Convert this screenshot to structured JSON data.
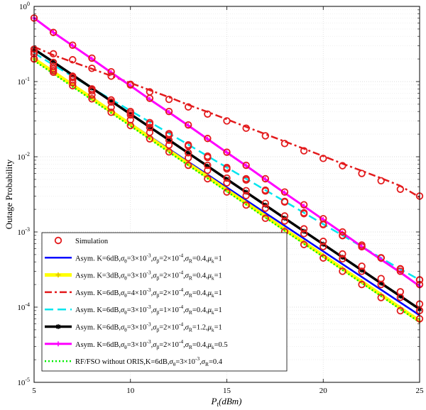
{
  "chart_data": {
    "type": "line",
    "y_scale": "log",
    "xlabel": "P_t(dBm)",
    "ylabel": "Outage Probability",
    "xlim": [
      5,
      25
    ],
    "ylim": [
      1e-05,
      1
    ],
    "grid": true,
    "legend_placement": "bottom-left",
    "x_ticks": [
      "5",
      "10",
      "15",
      "20",
      "25"
    ],
    "y_ticks": [
      {
        "value": 1,
        "base": "10",
        "exp": "0"
      },
      {
        "value": 0.1,
        "base": "10",
        "exp": "-1"
      },
      {
        "value": 0.01,
        "base": "10",
        "exp": "-2"
      },
      {
        "value": 0.001,
        "base": "10",
        "exp": "-3"
      },
      {
        "value": 0.0001,
        "base": "10",
        "exp": "-4"
      },
      {
        "value": 1e-05,
        "base": "10",
        "exp": "-5"
      }
    ],
    "simulation": {
      "name": "Simulation",
      "color": "#e31a1c",
      "x": [
        5,
        6,
        7,
        8,
        9,
        10,
        11,
        12,
        13,
        14,
        15,
        16,
        17,
        18,
        19,
        20,
        21,
        22,
        23,
        24,
        25
      ],
      "sets": [
        [
          0.2,
          0.148,
          0.106,
          0.0752,
          0.0537,
          0.0381,
          0.0272,
          0.0194,
          0.0139,
          0.0098,
          0.0069,
          0.0049,
          0.0035,
          0.0025,
          0.00175,
          0.00125,
          0.00089,
          0.000636,
          0.000454,
          0.000324,
          0.000231
        ],
        [
          0.2,
          0.14,
          0.097,
          0.0665,
          0.0455,
          0.031,
          0.0211,
          0.0143,
          0.0097,
          0.0066,
          0.0045,
          0.00305,
          0.00207,
          0.0014,
          0.00095,
          0.00064,
          0.00044,
          0.0003,
          0.0002,
          0.000135,
          9e-05
        ],
        [
          0.232,
          0.234,
          0.195,
          0.15,
          0.118,
          0.092,
          0.073,
          0.058,
          0.046,
          0.037,
          0.03,
          0.024,
          0.019,
          0.015,
          0.012,
          0.0095,
          0.0076,
          0.006,
          0.0048,
          0.0037,
          0.003
        ],
        [
          0.25,
          0.16,
          0.113,
          0.08,
          0.057,
          0.04,
          0.0285,
          0.0203,
          0.0144,
          0.0102,
          0.0072,
          0.0051,
          0.0036,
          0.00255,
          0.0018,
          0.00127,
          0.0009,
          0.00064,
          0.00045,
          0.00032,
          0.00023
        ],
        [
          0.27,
          0.18,
          0.118,
          0.079,
          0.0535,
          0.036,
          0.0245,
          0.0166,
          0.0113,
          0.0077,
          0.0052,
          0.00354,
          0.0024,
          0.00163,
          0.0011,
          0.00075,
          0.00051,
          0.00035,
          0.00024,
          0.00016,
          0.00011
        ],
        [
          0.7,
          0.45,
          0.305,
          0.205,
          0.135,
          0.09,
          0.06,
          0.04,
          0.0265,
          0.0175,
          0.0115,
          0.0077,
          0.0051,
          0.0034,
          0.0023,
          0.0015,
          0.001,
          0.00067,
          0.00045,
          0.0003,
          0.0002
        ],
        [
          0.2,
          0.133,
          0.088,
          0.059,
          0.039,
          0.026,
          0.0173,
          0.0116,
          0.0077,
          0.0051,
          0.0034,
          0.00228,
          0.00152,
          0.00101,
          0.00068,
          0.00045,
          0.0003,
          0.0002,
          0.000134,
          8.95e-05,
          7e-05
        ]
      ]
    },
    "series": [
      {
        "name": "Asym. K=6dB,σ_θ=3×10^-3,σ_β=2×10^-4,σ_R=0.4,μ_k=1",
        "color": "#0000ff",
        "dash": "solid",
        "width": 2.5,
        "marker": "none",
        "x": [
          5,
          25
        ],
        "y": [
          0.196,
          7.8e-05
        ]
      },
      {
        "name": "Asym. K=3dB,σ_θ=3×10^-3,σ_β=2×10^-4,σ_R=0.4,μ_k=1",
        "color": "#ffff00",
        "dash": "solid",
        "width": 5,
        "marker": "plus",
        "x": [
          5,
          6,
          7,
          8,
          9,
          10,
          11,
          12,
          13,
          14,
          15,
          16,
          17,
          18,
          19,
          20,
          21,
          22,
          23,
          24,
          25
        ],
        "y": [
          0.2,
          0.134,
          0.0895,
          0.06,
          0.0401,
          0.0269,
          0.018,
          0.012,
          0.00806,
          0.0054,
          0.0036,
          0.00242,
          0.00162,
          0.00108,
          0.000725,
          0.000485,
          0.000325,
          0.000218,
          0.000146,
          9.74e-05,
          6.52e-05
        ]
      },
      {
        "name": "Asym. K=6dB,σ_θ=4×10^-3,σ_β=2×10^-4,σ_R=0.4,μ_k=1",
        "color": "#e31a1c",
        "dash": "dashdot",
        "width": 2.5,
        "marker": "none",
        "x": [
          5,
          6,
          7,
          8,
          9,
          10,
          11,
          12,
          13,
          14,
          15,
          16,
          17,
          18,
          19,
          20,
          21,
          22,
          23,
          24,
          25
        ],
        "y": [
          0.29,
          0.225,
          0.182,
          0.148,
          0.119,
          0.096,
          0.077,
          0.062,
          0.049,
          0.0395,
          0.0315,
          0.025,
          0.02,
          0.016,
          0.0128,
          0.0102,
          0.0081,
          0.0065,
          0.0052,
          0.0041,
          0.0029
        ]
      },
      {
        "name": "Asym. K=6dB,σ_θ=3×10^-3,σ_β=1×10^-4,σ_R=0.4,μ_k=1",
        "color": "#00e5ee",
        "dash": "dash",
        "width": 2.5,
        "marker": "none",
        "x": [
          5,
          6,
          7,
          8,
          9,
          10,
          11,
          12,
          13,
          14,
          15,
          16,
          17,
          18,
          19,
          20,
          21,
          22,
          23,
          24,
          25
        ],
        "y": [
          0.24,
          0.166,
          0.117,
          0.082,
          0.058,
          0.041,
          0.029,
          0.0205,
          0.0145,
          0.0102,
          0.0072,
          0.0051,
          0.0036,
          0.00255,
          0.0018,
          0.00127,
          0.0009,
          0.00064,
          0.00045,
          0.00032,
          0.00023
        ]
      },
      {
        "name": "Asym. K=6dB,σ_θ=3×10^-3,σ_β=2×10^-4,σ_R=1.2,μ_k=1",
        "color": "#000000",
        "dash": "solid",
        "width": 3.5,
        "marker": "star",
        "x": [
          5,
          6,
          7,
          8,
          9,
          10,
          11,
          12,
          13,
          14,
          15,
          16,
          17,
          18,
          19,
          20,
          21,
          22,
          23,
          24,
          25
        ],
        "y": [
          0.27,
          0.182,
          0.122,
          0.082,
          0.055,
          0.037,
          0.0248,
          0.0167,
          0.0112,
          0.0075,
          0.00503,
          0.00338,
          0.00227,
          0.00152,
          0.00102,
          0.000687,
          0.000461,
          0.00031,
          0.000208,
          0.00014,
          9.4e-05
        ]
      },
      {
        "name": "Asym. K=6dB,σ_θ=3×10^-3,σ_β=2×10^-4,σ_R=0.4,μ_k=0.5",
        "color": "#ff00ff",
        "dash": "solid",
        "width": 3,
        "marker": "plus",
        "x": [
          5,
          6,
          7,
          8,
          9,
          10,
          11,
          12,
          13,
          14,
          15,
          16,
          17,
          18,
          19,
          20,
          21,
          22,
          23,
          24,
          25
        ],
        "y": [
          0.7,
          0.45,
          0.3,
          0.2,
          0.132,
          0.088,
          0.058,
          0.039,
          0.026,
          0.0172,
          0.0114,
          0.0076,
          0.005,
          0.0033,
          0.0022,
          0.00146,
          0.00097,
          0.00064,
          0.00043,
          0.00029,
          0.00019
        ]
      },
      {
        "name": "RF/FSO without ORIS,K=6dB,σ_θ=3×10^-3,σ_R=0.4",
        "color": "#00ee00",
        "dash": "dot",
        "width": 2.5,
        "marker": "none",
        "x": [
          5,
          25
        ],
        "y": [
          0.19,
          6.3e-05
        ]
      }
    ],
    "legend_entries": [
      {
        "kind": "marker",
        "color": "#e31a1c",
        "parts": [
          {
            "t": "Simulation",
            "s": "n"
          }
        ]
      },
      {
        "kind": "line",
        "series": 0,
        "parts": [
          {
            "t": "Asym. K=6dB,",
            "s": "n"
          },
          {
            "t": "σ",
            "s": "i"
          },
          {
            "t": "θ",
            "s": "sub"
          },
          {
            "t": "=3×10",
            "s": "n"
          },
          {
            "t": "-3",
            "s": "sup"
          },
          {
            "t": ",",
            "s": "n"
          },
          {
            "t": "σ",
            "s": "i"
          },
          {
            "t": "β",
            "s": "sub"
          },
          {
            "t": "=2×10",
            "s": "n"
          },
          {
            "t": "-4",
            "s": "sup"
          },
          {
            "t": ",",
            "s": "n"
          },
          {
            "t": "σ",
            "s": "i"
          },
          {
            "t": "R",
            "s": "sub"
          },
          {
            "t": "=0.4,",
            "s": "n"
          },
          {
            "t": "μ",
            "s": "i"
          },
          {
            "t": "k",
            "s": "sub"
          },
          {
            "t": "=1",
            "s": "n"
          }
        ]
      },
      {
        "kind": "line",
        "series": 1,
        "parts": [
          {
            "t": "Asym. K=3dB,",
            "s": "n"
          },
          {
            "t": "σ",
            "s": "i"
          },
          {
            "t": "θ",
            "s": "sub"
          },
          {
            "t": "=3×10",
            "s": "n"
          },
          {
            "t": "-3",
            "s": "sup"
          },
          {
            "t": ",",
            "s": "n"
          },
          {
            "t": "σ",
            "s": "i"
          },
          {
            "t": "β",
            "s": "sub"
          },
          {
            "t": "=2×10",
            "s": "n"
          },
          {
            "t": "-4",
            "s": "sup"
          },
          {
            "t": ",",
            "s": "n"
          },
          {
            "t": "σ",
            "s": "i"
          },
          {
            "t": "R",
            "s": "sub"
          },
          {
            "t": "=0.4,",
            "s": "n"
          },
          {
            "t": "μ",
            "s": "i"
          },
          {
            "t": "k",
            "s": "sub"
          },
          {
            "t": "=1",
            "s": "n"
          }
        ]
      },
      {
        "kind": "line",
        "series": 2,
        "parts": [
          {
            "t": "Asym. K=6dB,",
            "s": "n"
          },
          {
            "t": "σ",
            "s": "i"
          },
          {
            "t": "θ",
            "s": "sub"
          },
          {
            "t": "=4×10",
            "s": "n"
          },
          {
            "t": "-3",
            "s": "sup"
          },
          {
            "t": ",",
            "s": "n"
          },
          {
            "t": "σ",
            "s": "i"
          },
          {
            "t": "β",
            "s": "sub"
          },
          {
            "t": "=2×10",
            "s": "n"
          },
          {
            "t": "-4",
            "s": "sup"
          },
          {
            "t": ",",
            "s": "n"
          },
          {
            "t": "σ",
            "s": "i"
          },
          {
            "t": "R",
            "s": "sub"
          },
          {
            "t": "=0.4,",
            "s": "n"
          },
          {
            "t": "μ",
            "s": "i"
          },
          {
            "t": "k",
            "s": "sub"
          },
          {
            "t": "=1",
            "s": "n"
          }
        ]
      },
      {
        "kind": "line",
        "series": 3,
        "parts": [
          {
            "t": "Asym. K=6dB,",
            "s": "n"
          },
          {
            "t": "σ",
            "s": "i"
          },
          {
            "t": "θ",
            "s": "sub"
          },
          {
            "t": "=3×10",
            "s": "n"
          },
          {
            "t": "-3",
            "s": "sup"
          },
          {
            "t": ",",
            "s": "n"
          },
          {
            "t": "σ",
            "s": "i"
          },
          {
            "t": "β",
            "s": "sub"
          },
          {
            "t": "=1×10",
            "s": "n"
          },
          {
            "t": "-4",
            "s": "sup"
          },
          {
            "t": ",",
            "s": "n"
          },
          {
            "t": "σ",
            "s": "i"
          },
          {
            "t": "R",
            "s": "sub"
          },
          {
            "t": "=0.4,",
            "s": "n"
          },
          {
            "t": "μ",
            "s": "i"
          },
          {
            "t": "k",
            "s": "sub"
          },
          {
            "t": "=1",
            "s": "n"
          }
        ]
      },
      {
        "kind": "line",
        "series": 4,
        "parts": [
          {
            "t": "Asym. K=6dB,",
            "s": "n"
          },
          {
            "t": "σ",
            "s": "i"
          },
          {
            "t": "θ",
            "s": "sub"
          },
          {
            "t": "=3×10",
            "s": "n"
          },
          {
            "t": "-3",
            "s": "sup"
          },
          {
            "t": ",",
            "s": "n"
          },
          {
            "t": "σ",
            "s": "i"
          },
          {
            "t": "β",
            "s": "sub"
          },
          {
            "t": "=2×10",
            "s": "n"
          },
          {
            "t": "-4",
            "s": "sup"
          },
          {
            "t": ",",
            "s": "n"
          },
          {
            "t": "σ",
            "s": "i"
          },
          {
            "t": "R",
            "s": "sub"
          },
          {
            "t": "=1.2,",
            "s": "n"
          },
          {
            "t": "μ",
            "s": "i"
          },
          {
            "t": "k",
            "s": "sub"
          },
          {
            "t": "=1",
            "s": "n"
          }
        ]
      },
      {
        "kind": "line",
        "series": 5,
        "parts": [
          {
            "t": "Asym. K=6dB,",
            "s": "n"
          },
          {
            "t": "σ",
            "s": "i"
          },
          {
            "t": "θ",
            "s": "sub"
          },
          {
            "t": "=3×10",
            "s": "n"
          },
          {
            "t": "-3",
            "s": "sup"
          },
          {
            "t": ",",
            "s": "n"
          },
          {
            "t": "σ",
            "s": "i"
          },
          {
            "t": "β",
            "s": "sub"
          },
          {
            "t": "=2×10",
            "s": "n"
          },
          {
            "t": "-4",
            "s": "sup"
          },
          {
            "t": ",",
            "s": "n"
          },
          {
            "t": "σ",
            "s": "i"
          },
          {
            "t": "R",
            "s": "sub"
          },
          {
            "t": "=0.4,",
            "s": "n"
          },
          {
            "t": "μ",
            "s": "i"
          },
          {
            "t": "k",
            "s": "sub"
          },
          {
            "t": "=0.5",
            "s": "n"
          }
        ]
      },
      {
        "kind": "line",
        "series": 6,
        "parts": [
          {
            "t": "RF/FSO without ORIS,K=6dB,",
            "s": "n"
          },
          {
            "t": "σ",
            "s": "i"
          },
          {
            "t": "θ",
            "s": "sub"
          },
          {
            "t": "=3×10",
            "s": "n"
          },
          {
            "t": "-3",
            "s": "sup"
          },
          {
            "t": ",",
            "s": "n"
          },
          {
            "t": "σ",
            "s": "i"
          },
          {
            "t": "R",
            "s": "sub"
          },
          {
            "t": "=0.4",
            "s": "n"
          }
        ]
      }
    ]
  }
}
